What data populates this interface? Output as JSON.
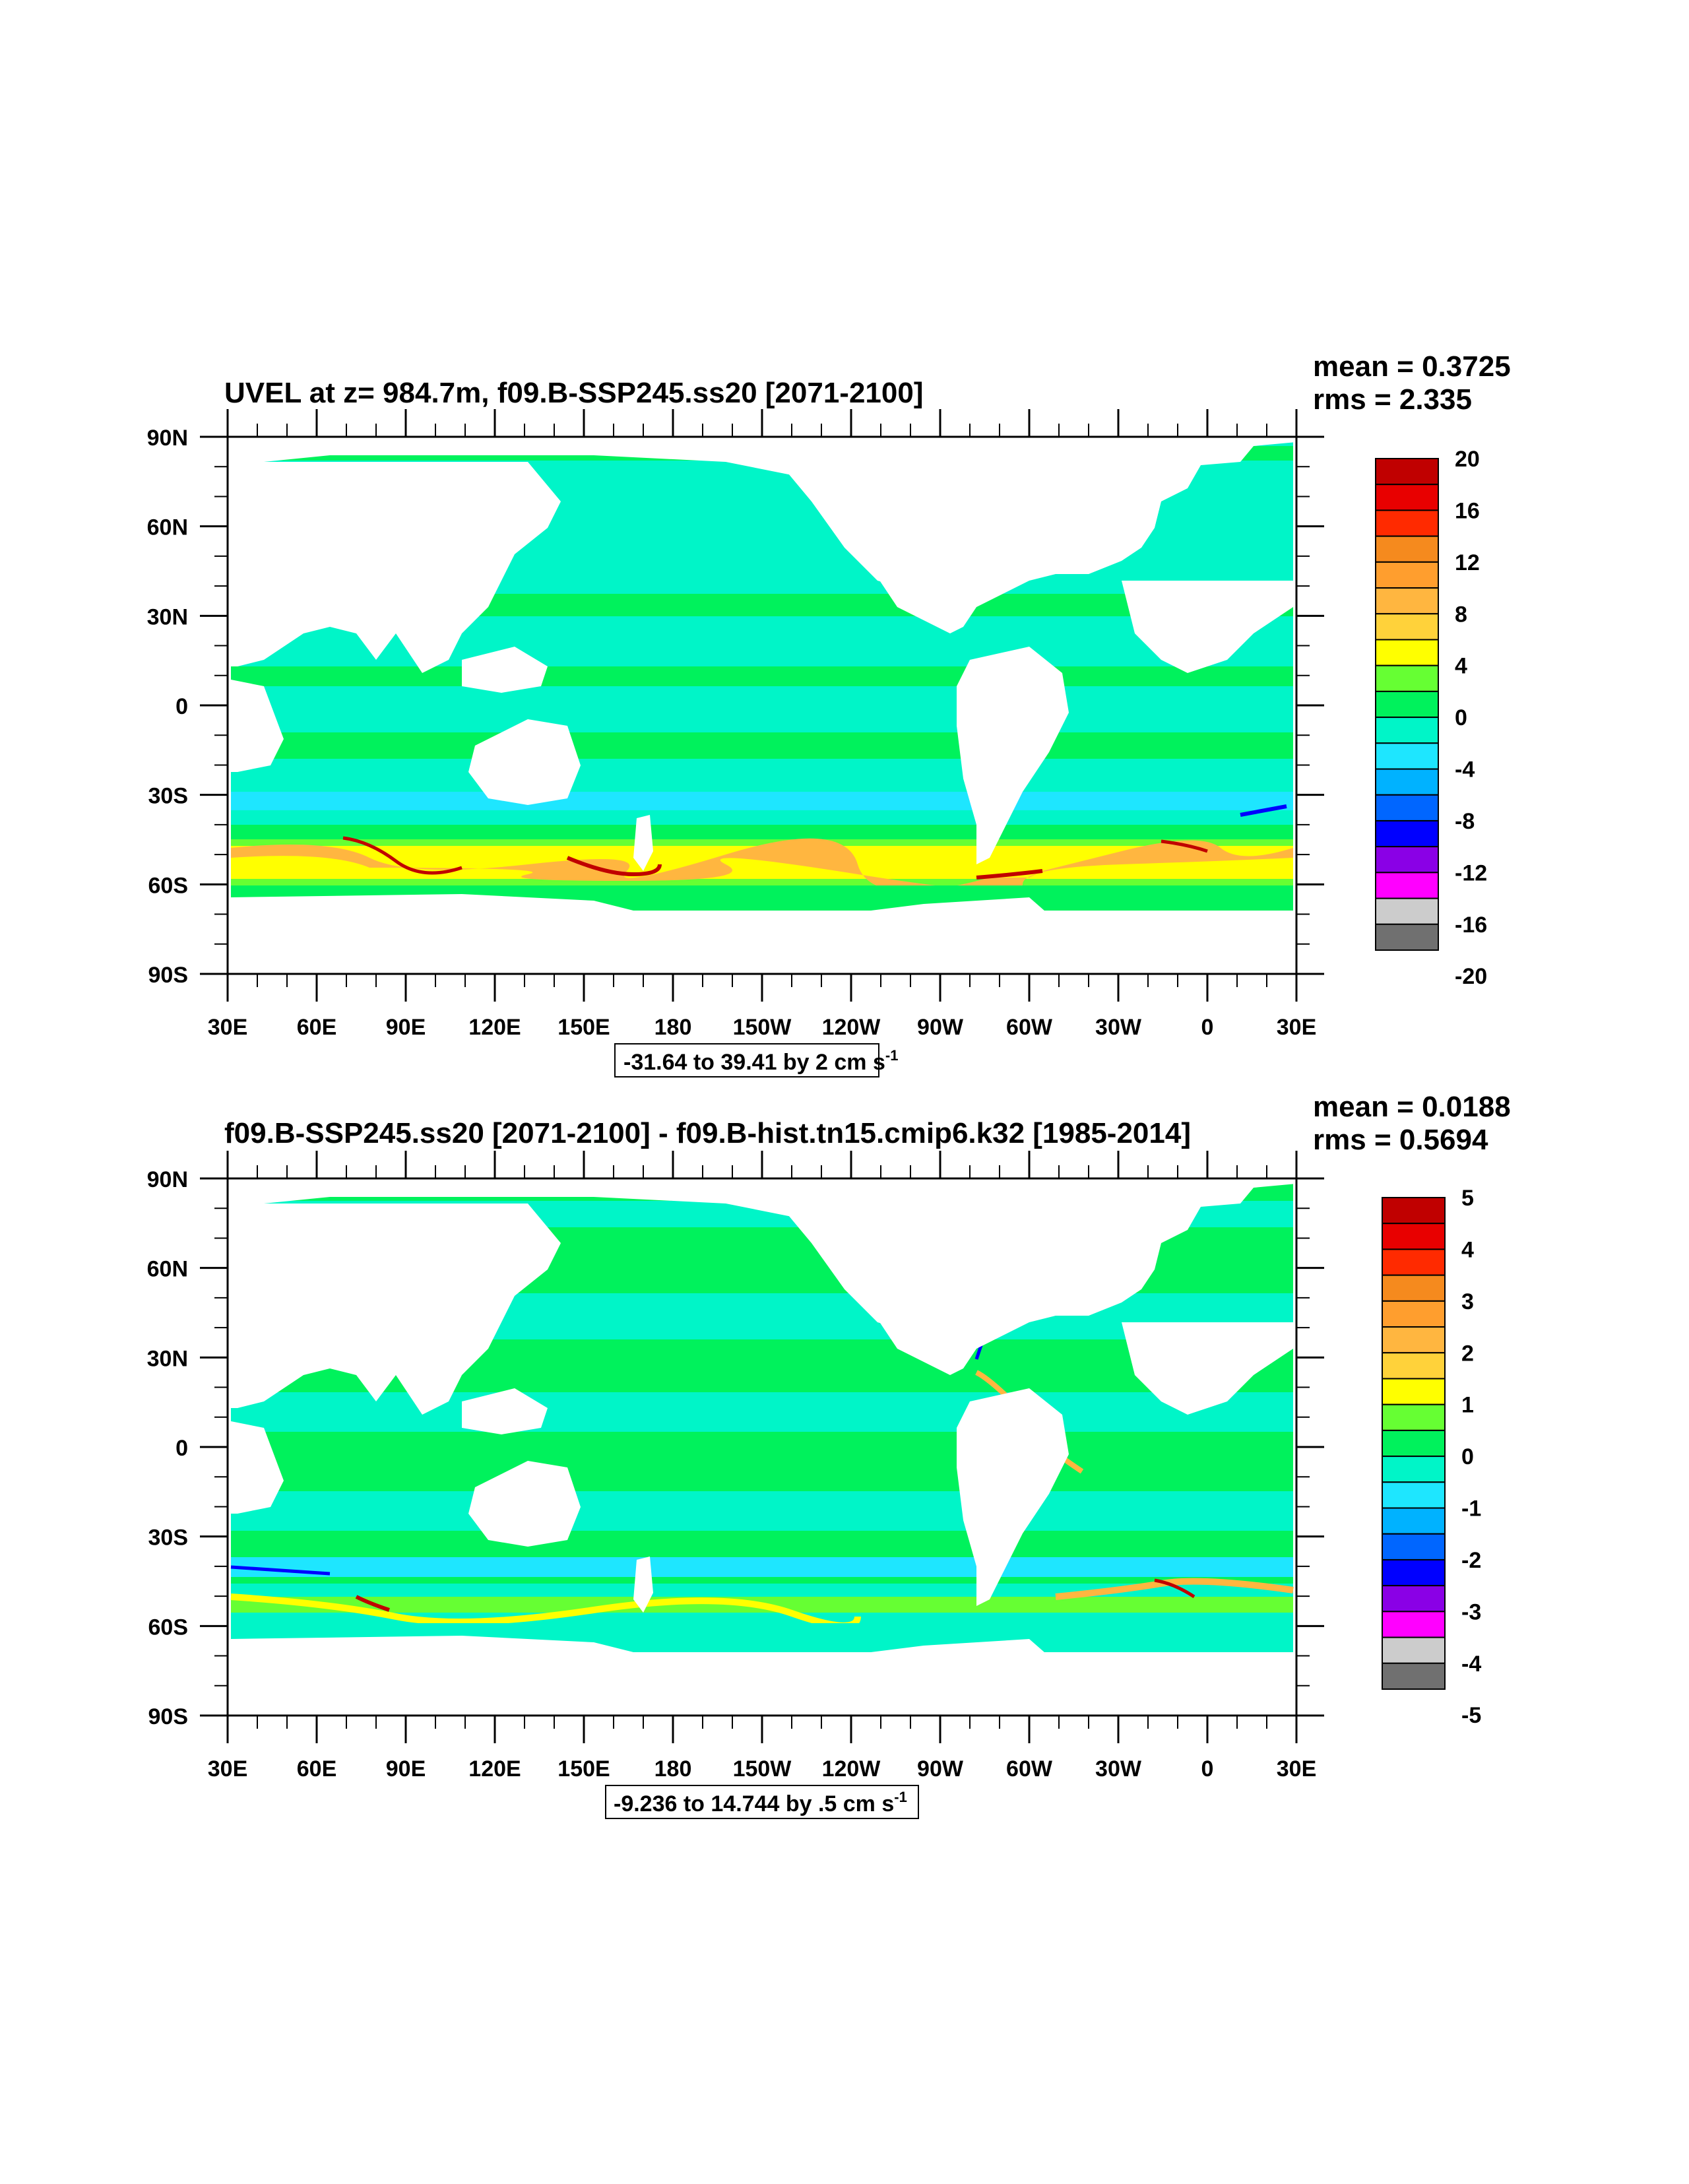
{
  "panels": [
    {
      "id": "top",
      "title": "UVEL at z= 984.7m, f09.B-SSP245.ss20 [2071-2100]",
      "mean_label": "mean = 0.3725",
      "rms_label": "rms = 2.335",
      "range_label": "-31.64 to 39.41 by 2 cm s",
      "range_superscript": "-1",
      "colorbar_labels": [
        "20",
        "16",
        "12",
        "8",
        "4",
        "0",
        "-4",
        "-8",
        "-12",
        "-16",
        "-20"
      ]
    },
    {
      "id": "bottom",
      "title": "f09.B-SSP245.ss20 [2071-2100] - f09.B-hist.tn15.cmip6.k32 [1985-2014]",
      "mean_label": "mean = 0.0188",
      "rms_label": "rms = 0.5694",
      "range_label": "-9.236 to 14.744 by .5 cm s",
      "range_superscript": "-1",
      "colorbar_labels": [
        "5",
        "4",
        "3",
        "2",
        "1",
        "0",
        "-1",
        "-2",
        "-3",
        "-4",
        "-5"
      ]
    }
  ],
  "axes": {
    "lat_labels": [
      "90N",
      "60N",
      "30N",
      "0",
      "30S",
      "60S",
      "90S"
    ],
    "lon_labels": [
      "30E",
      "60E",
      "90E",
      "120E",
      "150E",
      "180",
      "150W",
      "120W",
      "90W",
      "60W",
      "30W",
      "0",
      "30E"
    ]
  },
  "palette": [
    "#c00000",
    "#e80000",
    "#ff2a00",
    "#f58a1e",
    "#ff9e2e",
    "#ffb640",
    "#ffd23a",
    "#ffff00",
    "#66ff33",
    "#00f25c",
    "#00f5c8",
    "#1ee6ff",
    "#00b2ff",
    "#0066ff",
    "#0000ff",
    "#8a00e6",
    "#ff00ff",
    "#cccccc",
    "#707070"
  ],
  "colors": {
    "ocean_base": "#00f5c8",
    "ocean_green": "#00f25c",
    "land": "#ffffff",
    "frame": "#000000"
  },
  "chart_data": [
    {
      "type": "heatmap",
      "title": "UVEL at z= 984.7m, f09.B-SSP245.ss20 [2071-2100]",
      "variable": "UVEL",
      "units": "cm s-1",
      "depth_m": 984.7,
      "xlim": [
        30,
        390
      ],
      "ylim": [
        -90,
        90
      ],
      "mean": 0.3725,
      "rms": 2.335,
      "min": -31.64,
      "max": 39.41,
      "contour_interval": 2,
      "colorbar_levels": [
        20,
        16,
        12,
        8,
        4,
        0,
        -4,
        -8,
        -12,
        -16,
        -20
      ],
      "zonal_bands": [
        {
          "lat": [
            60,
            88
          ],
          "value": 0.5
        },
        {
          "lat": [
            20,
            60
          ],
          "value": -1.5
        },
        {
          "lat": [
            5,
            20
          ],
          "value": 0.5
        },
        {
          "lat": [
            -5,
            5
          ],
          "value": -2
        },
        {
          "lat": [
            -20,
            -5
          ],
          "value": 0.5
        },
        {
          "lat": [
            -35,
            -20
          ],
          "value": -2
        },
        {
          "lat": [
            -40,
            -35
          ],
          "value": 0.5
        },
        {
          "lat": [
            -55,
            -40
          ],
          "value": 6
        },
        {
          "lat": [
            -65,
            -55
          ],
          "value": 2
        },
        {
          "lat": [
            -78,
            -65
          ],
          "value": -1
        }
      ]
    },
    {
      "type": "heatmap",
      "title": "f09.B-SSP245.ss20 [2071-2100] - f09.B-hist.tn15.cmip6.k32 [1985-2014]",
      "variable": "UVEL difference",
      "units": "cm s-1",
      "xlim": [
        30,
        390
      ],
      "ylim": [
        -90,
        90
      ],
      "mean": 0.0188,
      "rms": 0.5694,
      "min": -9.236,
      "max": 14.744,
      "contour_interval": 0.5,
      "colorbar_levels": [
        5,
        4,
        3,
        2,
        1,
        0,
        -1,
        -2,
        -3,
        -4,
        -5
      ],
      "zonal_bands": [
        {
          "lat": [
            60,
            88
          ],
          "value": 0.2
        },
        {
          "lat": [
            20,
            60
          ],
          "value": 0.2
        },
        {
          "lat": [
            0,
            20
          ],
          "value": -0.2
        },
        {
          "lat": [
            -20,
            0
          ],
          "value": 0.2
        },
        {
          "lat": [
            -40,
            -20
          ],
          "value": -0.2
        },
        {
          "lat": [
            -50,
            -40
          ],
          "value": -0.8
        },
        {
          "lat": [
            -60,
            -50
          ],
          "value": 1.5
        },
        {
          "lat": [
            -78,
            -60
          ],
          "value": 0.2
        }
      ]
    }
  ]
}
